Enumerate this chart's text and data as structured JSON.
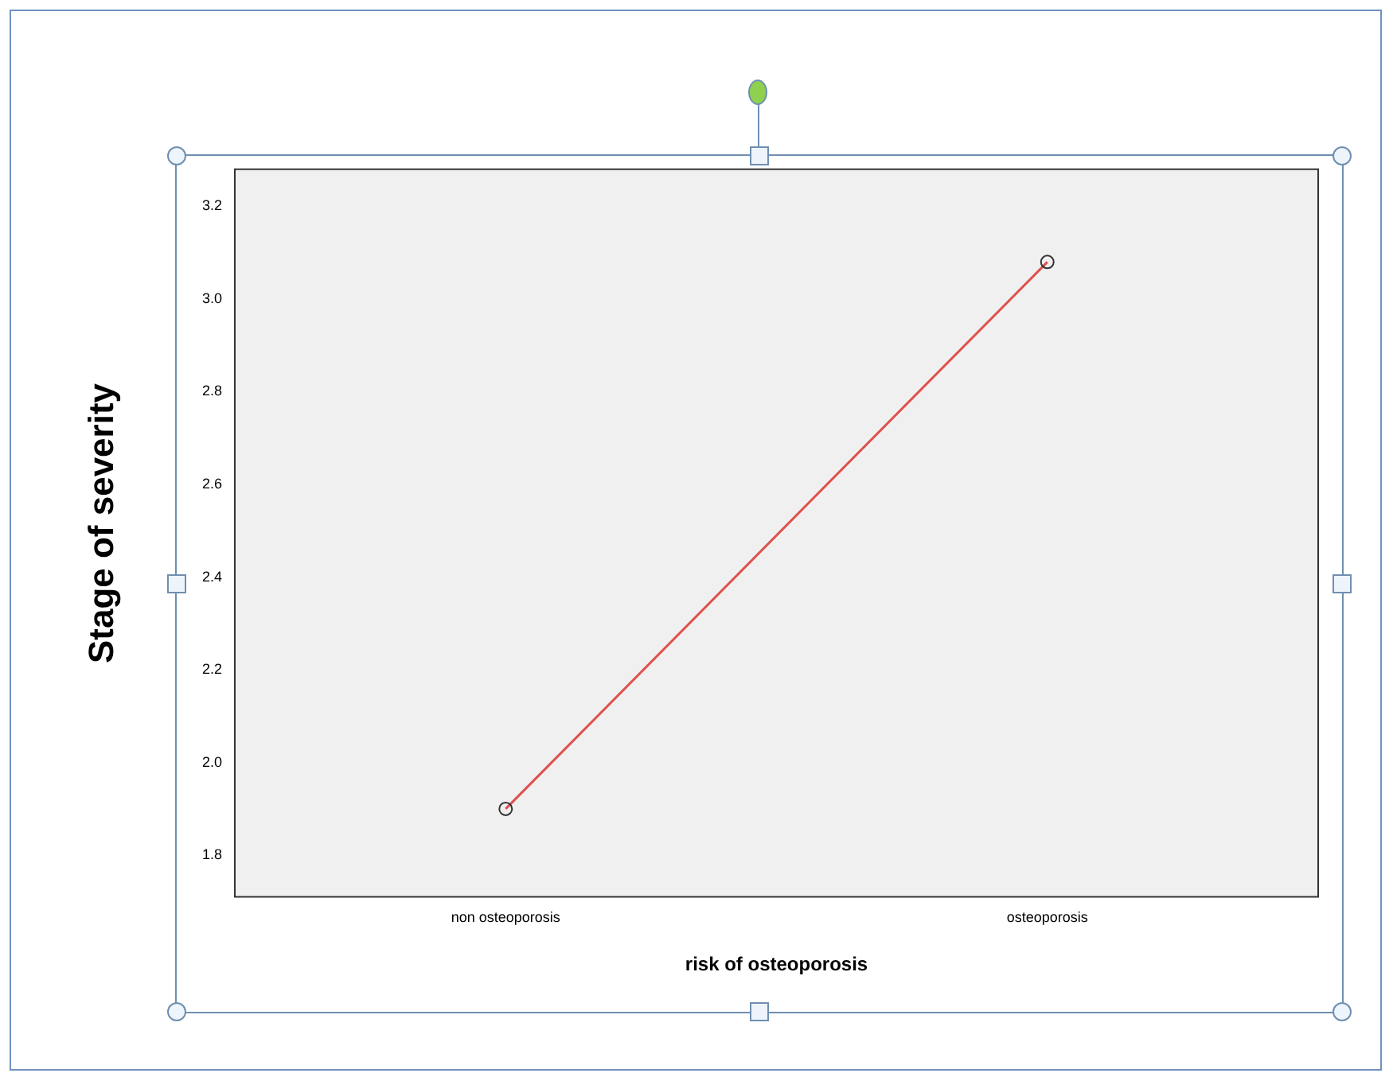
{
  "chart_data": {
    "type": "line",
    "ylabel": "Stage of severity",
    "xlabel": "risk of osteoporosis",
    "categories": [
      "non osteoporosis",
      "osteoporosis"
    ],
    "series": [
      {
        "color": "#e0504c",
        "values": [
          1.9,
          3.08
        ]
      }
    ],
    "ylim": [
      1.71,
      3.28
    ],
    "yticks": [
      {
        "value": 1.8,
        "label": "1.8"
      },
      {
        "value": 2.0,
        "label": "2.0"
      },
      {
        "value": 2.2,
        "label": "2.2"
      },
      {
        "value": 2.4,
        "label": "2.4"
      },
      {
        "value": 2.6,
        "label": "2.6"
      },
      {
        "value": 2.8,
        "label": "2.8"
      },
      {
        "value": 3.0,
        "label": "3.0"
      },
      {
        "value": 3.2,
        "label": "3.2"
      }
    ],
    "grid": false,
    "legend": false,
    "marker": "circle",
    "line_style": "solid"
  }
}
